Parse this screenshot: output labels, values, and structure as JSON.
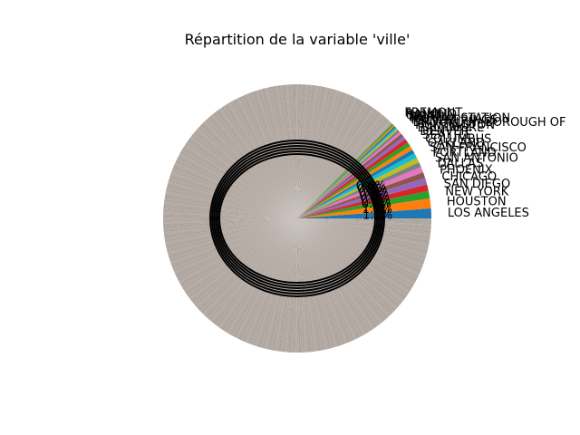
{
  "chart_data": {
    "type": "pie",
    "title": "Répartition de la variable 'ville'",
    "legend": "none",
    "labels_outside": true,
    "autopct_shown": true,
    "start_angle_deg": 0,
    "direction": "counterclockwise",
    "categories": [
      "LOS ANGELES",
      "HOUSTON",
      "NEW YORK",
      "SAN DIEGO",
      "CHICAGO",
      "PHOENIX",
      "DALLAS",
      "SAN ANTONIO",
      "PORTLAND",
      "SAN FRANCISCO",
      "OAKLAND",
      "COLUMBUS",
      "SEATTLE",
      "DENVER",
      "BALTIMORE",
      "HUNTINGTON",
      "BROOKLYN (BOROUGH OF",
      "PALM SPRINGS",
      "FAIRFAX STATION",
      "NORTH",
      "SAINT",
      "RANCHO",
      "FREMONT"
    ],
    "values": [
      1.2,
      1.2,
      0.9,
      0.8,
      0.8,
      0.7,
      0.7,
      0.6,
      0.6,
      0.6,
      0.5,
      0.5,
      0.5,
      0.5,
      0.4,
      0.4,
      0.3,
      0.3,
      0.2,
      0.2,
      0.2,
      0.2,
      0.2
    ],
    "long_tail_label": "",
    "long_tail_value": 87.8,
    "long_tail_slices": 360,
    "percent_labels": [
      "1.2%",
      "1.2%",
      "0.9%",
      "0.8%",
      "0.8%",
      "0.7%",
      "0.7%",
      "0.6%"
    ],
    "colors": [
      "#1f77b4",
      "#ff7f0e",
      "#2ca02c",
      "#d62728",
      "#9467bd",
      "#8c564b",
      "#e377c2",
      "#7f7f7f",
      "#bcbd22",
      "#17becf"
    ]
  }
}
